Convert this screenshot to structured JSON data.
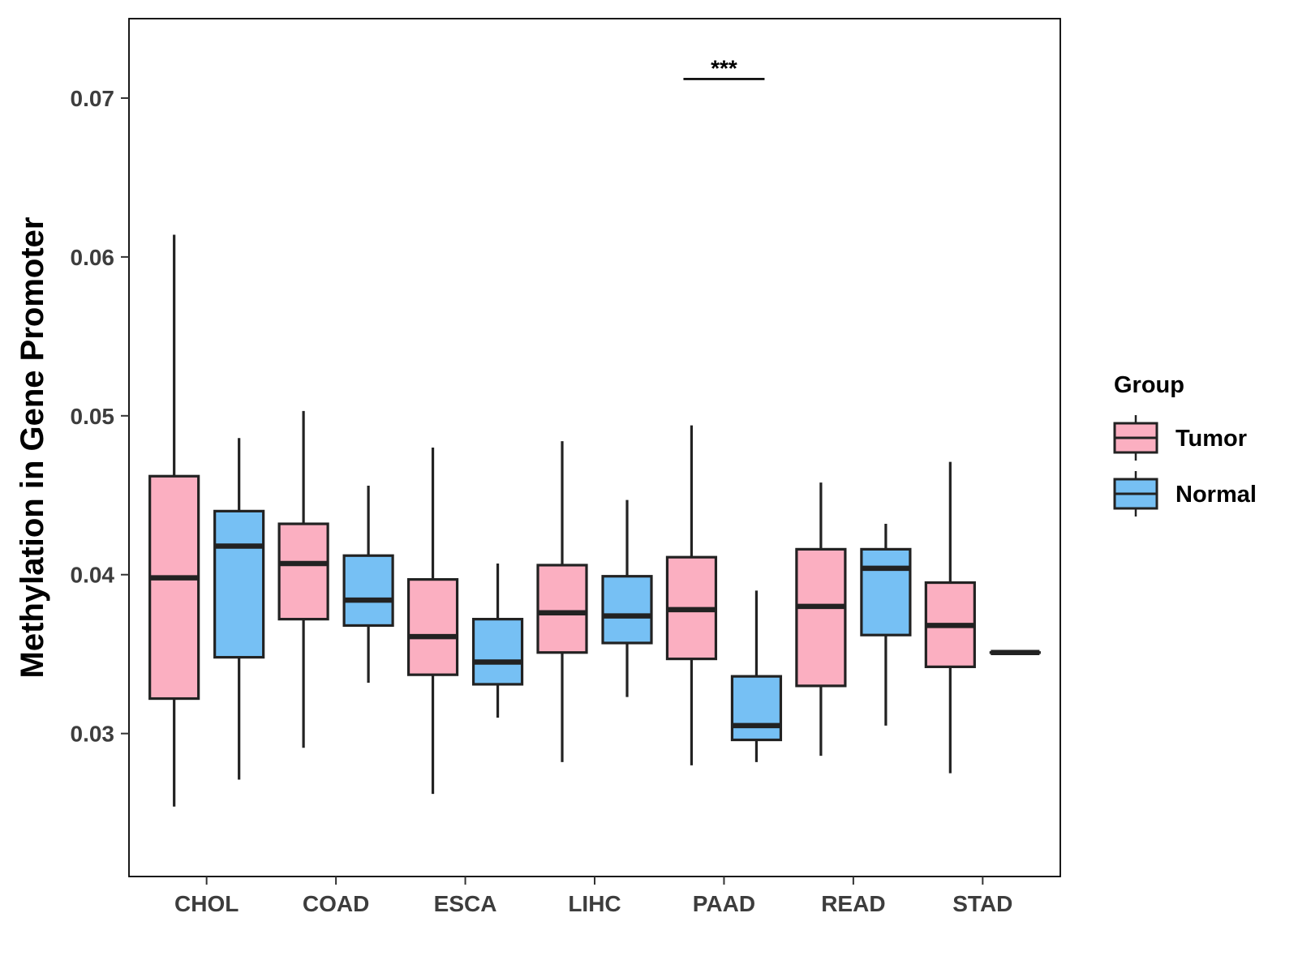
{
  "chart_data": {
    "type": "boxplot",
    "title": "",
    "xlabel": "",
    "ylabel": "Methylation in Gene Promoter",
    "ylim": [
      0.021,
      0.075
    ],
    "yticks": [
      0.03,
      0.04,
      0.05,
      0.06,
      0.07
    ],
    "ytick_labels": [
      "0.03",
      "0.04",
      "0.05",
      "0.06",
      "0.07"
    ],
    "categories": [
      "CHOL",
      "COAD",
      "ESCA",
      "LIHC",
      "PAAD",
      "READ",
      "STAD"
    ],
    "legend": {
      "title": "Group",
      "position": "right",
      "entries": [
        {
          "name": "Tumor",
          "color": "#FBAFC1"
        },
        {
          "name": "Normal",
          "color": "#76C0F4"
        }
      ]
    },
    "series": [
      {
        "name": "Tumor",
        "color": "#FBAFC1",
        "boxes": [
          {
            "category": "CHOL",
            "min": 0.0254,
            "q1": 0.0322,
            "median": 0.0398,
            "q3": 0.0462,
            "max": 0.0614
          },
          {
            "category": "COAD",
            "min": 0.0291,
            "q1": 0.0372,
            "median": 0.0407,
            "q3": 0.0432,
            "max": 0.0503
          },
          {
            "category": "ESCA",
            "min": 0.0262,
            "q1": 0.0337,
            "median": 0.0361,
            "q3": 0.0397,
            "max": 0.048
          },
          {
            "category": "LIHC",
            "min": 0.0282,
            "q1": 0.0351,
            "median": 0.0376,
            "q3": 0.0406,
            "max": 0.0484
          },
          {
            "category": "PAAD",
            "min": 0.028,
            "q1": 0.0347,
            "median": 0.0378,
            "q3": 0.0411,
            "max": 0.0494
          },
          {
            "category": "READ",
            "min": 0.0286,
            "q1": 0.033,
            "median": 0.038,
            "q3": 0.0416,
            "max": 0.0458
          },
          {
            "category": "STAD",
            "min": 0.0275,
            "q1": 0.0342,
            "median": 0.0368,
            "q3": 0.0395,
            "max": 0.0471
          }
        ]
      },
      {
        "name": "Normal",
        "color": "#76C0F4",
        "boxes": [
          {
            "category": "CHOL",
            "min": 0.0271,
            "q1": 0.0348,
            "median": 0.0418,
            "q3": 0.044,
            "max": 0.0486
          },
          {
            "category": "COAD",
            "min": 0.0332,
            "q1": 0.0368,
            "median": 0.0384,
            "q3": 0.0412,
            "max": 0.0456
          },
          {
            "category": "ESCA",
            "min": 0.031,
            "q1": 0.0331,
            "median": 0.0345,
            "q3": 0.0372,
            "max": 0.0407
          },
          {
            "category": "LIHC",
            "min": 0.0323,
            "q1": 0.0357,
            "median": 0.0374,
            "q3": 0.0399,
            "max": 0.0447
          },
          {
            "category": "PAAD",
            "min": 0.0282,
            "q1": 0.0296,
            "median": 0.0305,
            "q3": 0.0336,
            "max": 0.039
          },
          {
            "category": "READ",
            "min": 0.0305,
            "q1": 0.0362,
            "median": 0.0404,
            "q3": 0.0416,
            "max": 0.0432
          },
          {
            "category": "STAD",
            "min": 0.0351,
            "q1": 0.0351,
            "median": 0.0351,
            "q3": 0.0351,
            "max": 0.0351
          }
        ]
      }
    ],
    "annotations": [
      {
        "category": "PAAD",
        "text": "***",
        "y": 0.0712
      }
    ]
  }
}
